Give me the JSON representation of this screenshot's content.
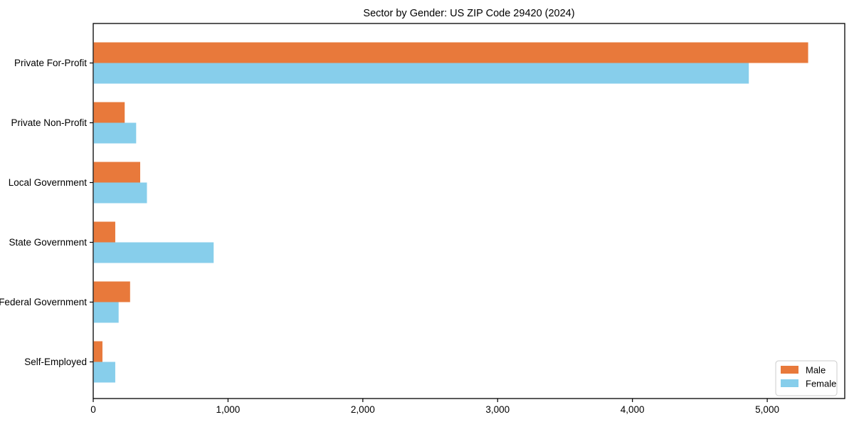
{
  "title": "Sector by Gender: US ZIP Code 29420 (2024)",
  "colors": {
    "male": "#E8793B",
    "female": "#87CEEB",
    "axis": "#000000",
    "legend_border": "#cccccc",
    "background": "#ffffff"
  },
  "chart_data": {
    "type": "bar",
    "orientation": "horizontal",
    "title": "Sector by Gender: US ZIP Code 29420 (2024)",
    "xlabel": "",
    "ylabel": "",
    "grid": false,
    "categories": [
      "Private For-Profit",
      "Private Non-Profit",
      "Local Government",
      "State Government",
      "Federal Government",
      "Self-Employed"
    ],
    "series": [
      {
        "name": "Male",
        "color": "#E8793B",
        "values": [
          5300,
          230,
          345,
          160,
          270,
          65
        ]
      },
      {
        "name": "Female",
        "color": "#87CEEB",
        "values": [
          4860,
          315,
          395,
          890,
          185,
          160
        ]
      }
    ],
    "xlim": [
      0,
      5575
    ],
    "xticks": {
      "values": [
        0,
        1000,
        2000,
        3000,
        4000,
        5000
      ],
      "labels": [
        "0",
        "1,000",
        "2,000",
        "3,000",
        "4,000",
        "5,000"
      ]
    },
    "legend": {
      "position": "lower right",
      "entries": [
        "Male",
        "Female"
      ]
    }
  }
}
